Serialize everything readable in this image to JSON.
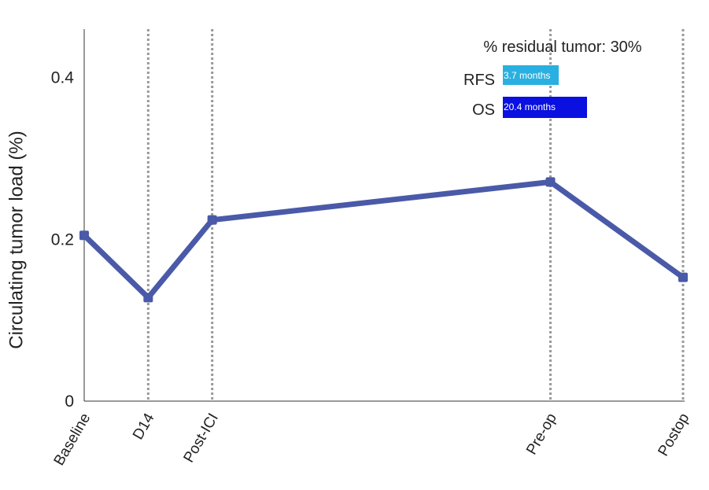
{
  "chart_data": {
    "type": "line",
    "categories": [
      "Baseline",
      "D14",
      "Post-ICI",
      "Pre-op",
      "Postop"
    ],
    "x_positions_days": [
      0,
      14,
      28,
      102,
      131
    ],
    "values": [
      0.205,
      0.128,
      0.224,
      0.271,
      0.153
    ],
    "ylabel": "Circulating tumor load (%)",
    "xlabel": "",
    "ylim": [
      0,
      0.46
    ],
    "yticks": [
      0,
      0.2,
      0.4
    ],
    "ytick_labels": [
      "0",
      "0.2",
      "0.4"
    ],
    "series_color": "#4a5aa8",
    "gridlines": "dotted vertical at each timepoint",
    "annotations": {
      "residual_tumor": "% residual tumor: 30%",
      "rfs_label": "RFS",
      "rfs_value": "3.7 months",
      "rfs_months": 3.7,
      "rfs_color": "#2ab0e0",
      "os_label": "OS",
      "os_value": "20.4 months",
      "os_months": 20.4,
      "os_color": "#0a10e0"
    }
  }
}
